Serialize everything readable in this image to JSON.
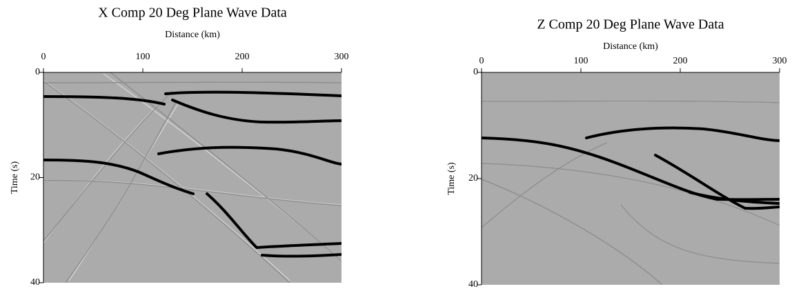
{
  "chart_data": [
    {
      "type": "image",
      "title": "X Comp 20 Deg Plane Wave Data",
      "xlabel": "Distance (km)",
      "ylabel": "Time (s)",
      "xlim": [
        0,
        300
      ],
      "ylim": [
        0,
        40
      ],
      "xticks": [
        0,
        100,
        200,
        300
      ],
      "yticks": [
        0,
        20,
        40
      ]
    },
    {
      "type": "image",
      "title": "Z Comp 20 Deg Plane Wave Data",
      "xlabel": "Distance (km)",
      "ylabel": "Time (s)",
      "xlim": [
        0,
        300
      ],
      "ylim": [
        0,
        40
      ],
      "xticks": [
        0,
        100,
        200,
        300
      ],
      "yticks": [
        0,
        20,
        40
      ]
    }
  ]
}
